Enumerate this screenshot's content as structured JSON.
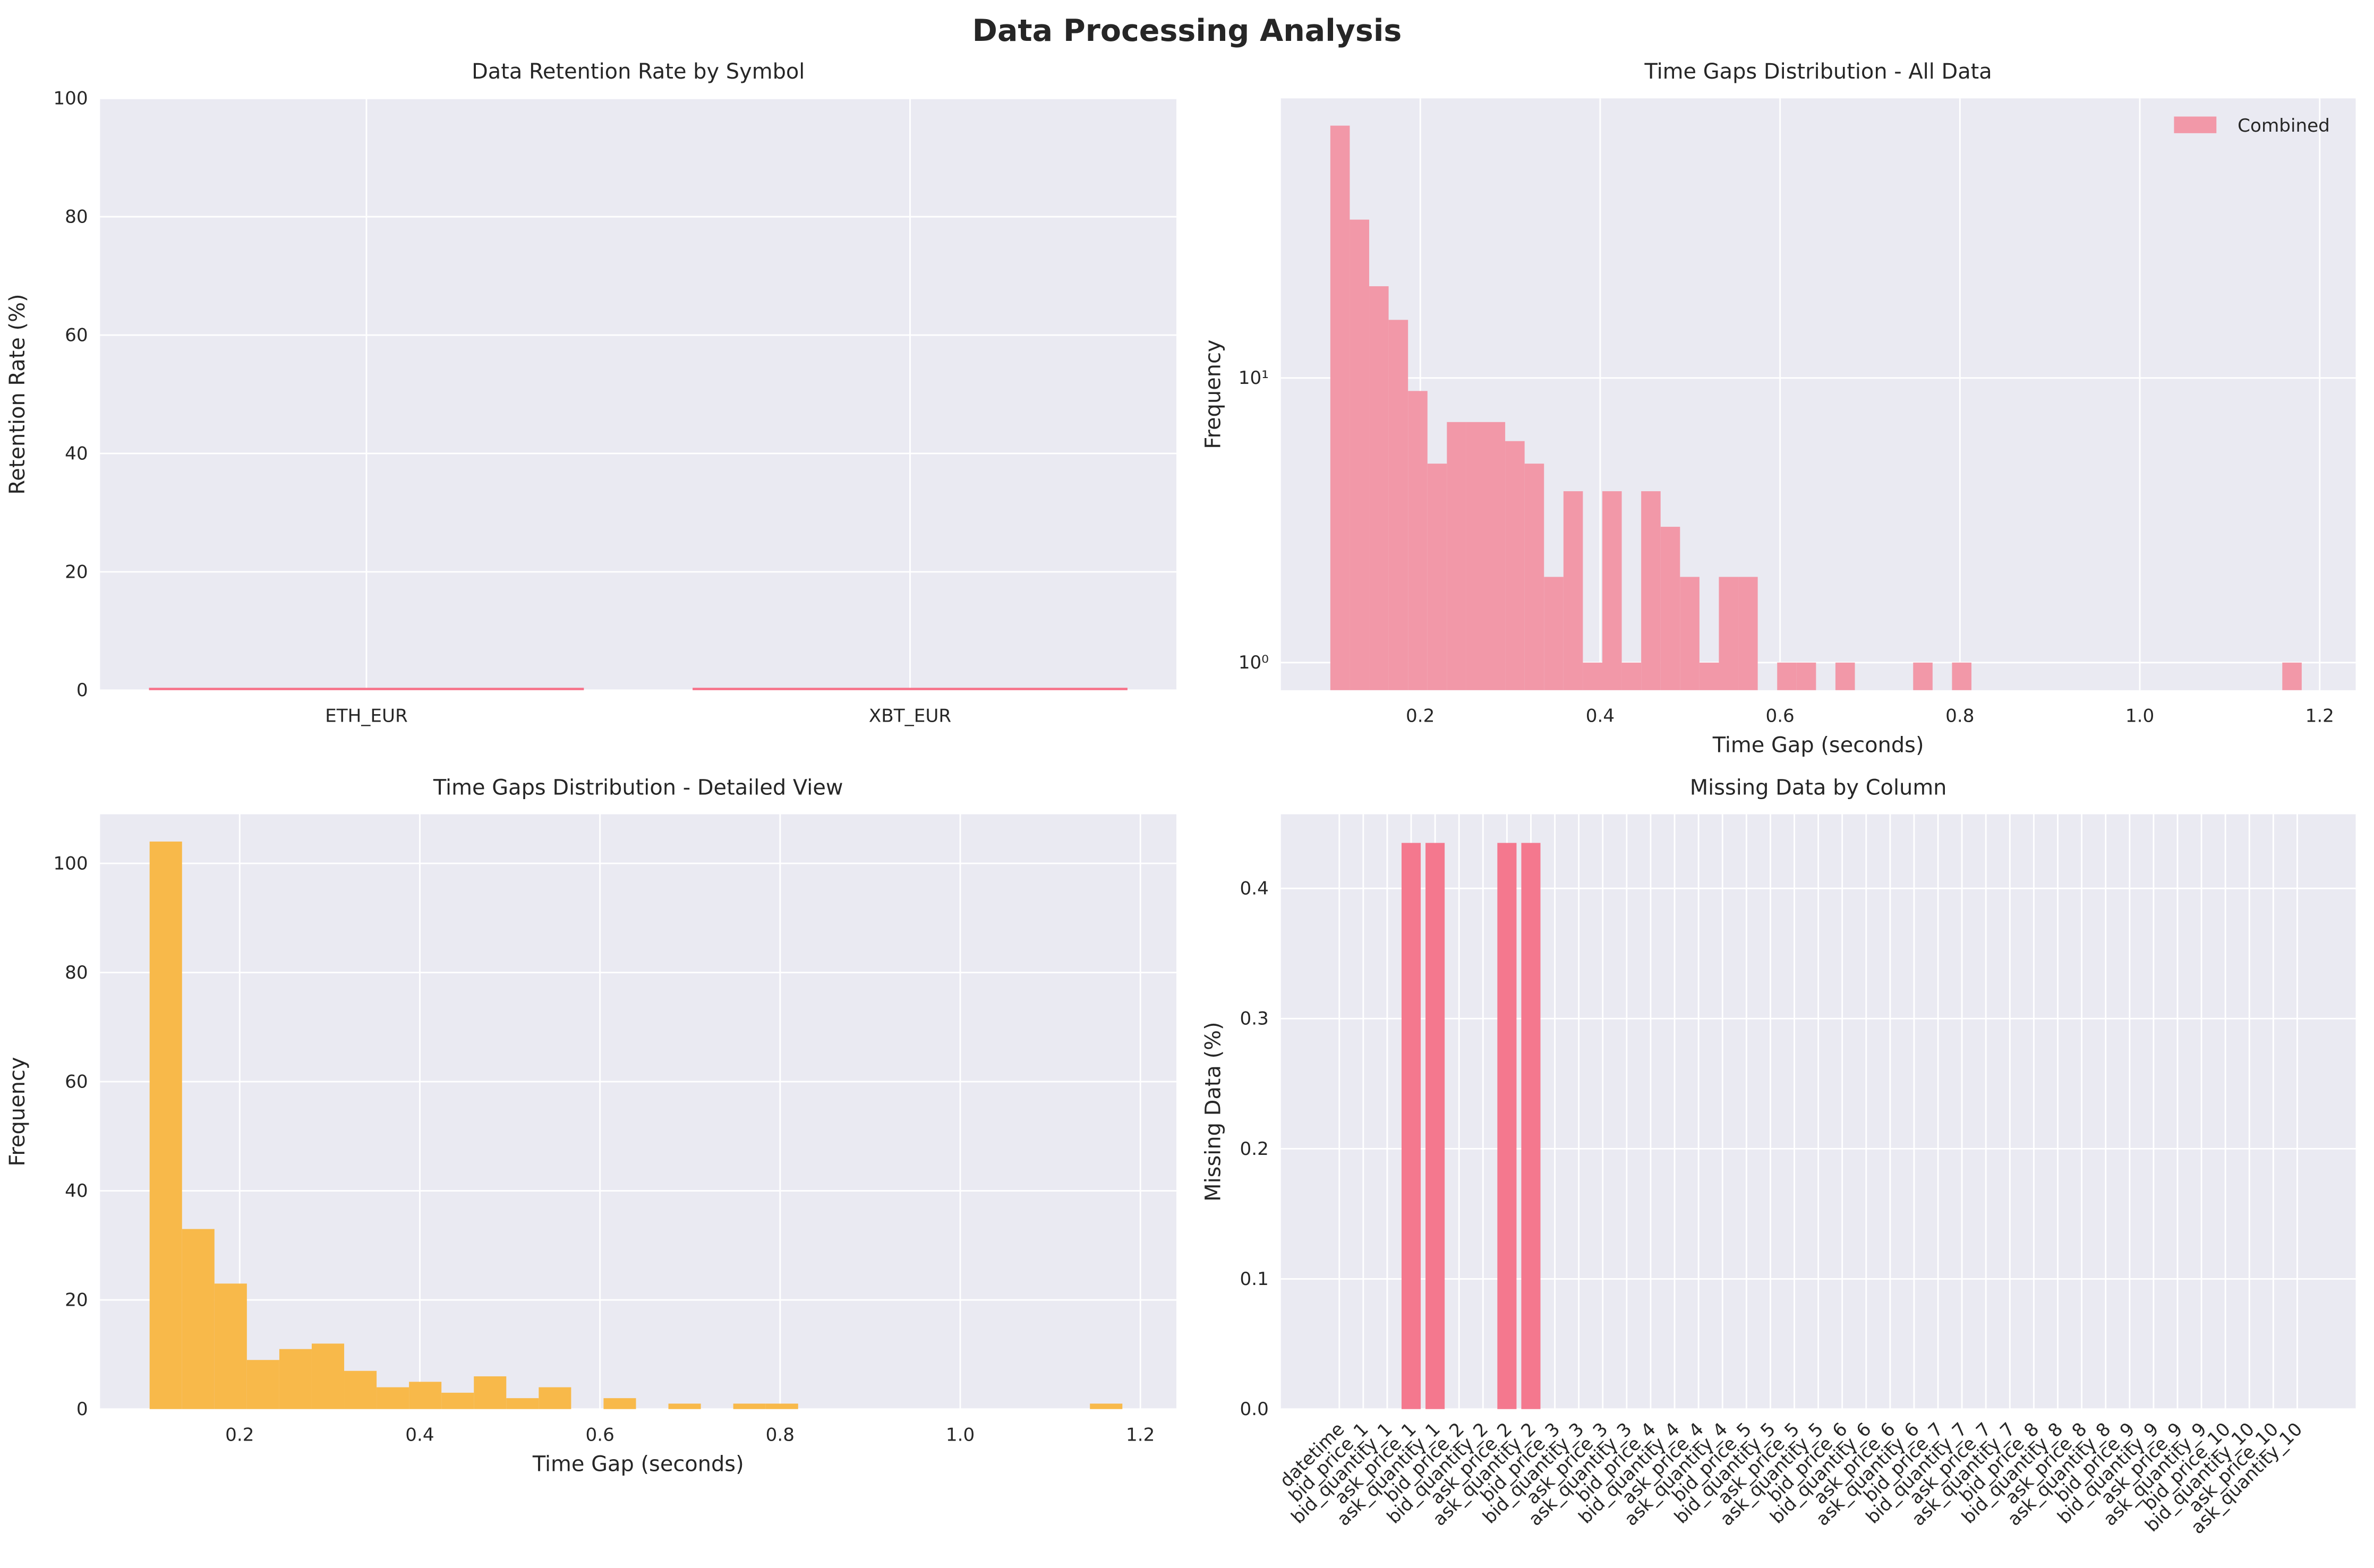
{
  "title": "Data Processing Analysis",
  "chart_data": [
    {
      "type": "bar",
      "title": "Data Retention Rate by Symbol",
      "ylabel": "Retention Rate (%)",
      "categories": [
        "ETH_EUR",
        "XBT_EUR"
      ],
      "values": [
        0.4,
        0.4
      ],
      "color": "#f77189",
      "ylim": [
        0,
        100
      ],
      "yticks": [
        0,
        20,
        40,
        60,
        80,
        100
      ],
      "grid": true
    },
    {
      "type": "histogram",
      "title": "Time Gaps Distribution - All Data",
      "xlabel": "Time Gap (seconds)",
      "ylabel": "Frequency",
      "bins": [
        0.1,
        0.1216,
        0.1432,
        0.1648,
        0.1864,
        0.208,
        0.2296,
        0.2512,
        0.2728,
        0.2944,
        0.316,
        0.3376,
        0.3592,
        0.3808,
        0.4024,
        0.424,
        0.4456,
        0.4672,
        0.4888,
        0.5104,
        0.532,
        0.5536,
        0.5752,
        0.5968,
        0.6184,
        0.64,
        0.6616,
        0.6832,
        0.7048,
        0.7264,
        0.748,
        0.7696,
        0.7912,
        0.8128,
        0.8344,
        0.856,
        0.8776,
        0.8992,
        0.9208,
        0.9424,
        0.964,
        0.9856,
        1.0072,
        1.0288,
        1.0504,
        1.072,
        1.0936,
        1.1152,
        1.1368,
        1.1584,
        1.18
      ],
      "series": [
        {
          "name": "Combined",
          "color": "#f298a8",
          "values": [
            77,
            36,
            21,
            16,
            9,
            5,
            7,
            7,
            7,
            6,
            5,
            2,
            4,
            1,
            4,
            1,
            4,
            3,
            2,
            1,
            2,
            2,
            0,
            1,
            1,
            0,
            1,
            0,
            0,
            0,
            1,
            0,
            1,
            0,
            0,
            0,
            0,
            0,
            0,
            0,
            0,
            0,
            0,
            0,
            0,
            0,
            0,
            0,
            0,
            1
          ]
        }
      ],
      "log_y": true,
      "ylim": [
        0.8,
        96
      ],
      "yticks": [
        {
          "value": 1,
          "label": "10⁰"
        },
        {
          "value": 10,
          "label": "10¹"
        }
      ],
      "xlim": [
        0.045,
        1.24
      ],
      "xticks": [
        0.2,
        0.4,
        0.6,
        0.8,
        {
          "value": 1,
          "label": "1.0"
        },
        1.2
      ],
      "legend": "upper right",
      "grid": true
    },
    {
      "type": "histogram",
      "title": "Time Gaps Distribution - Detailed View",
      "xlabel": "Time Gap (seconds)",
      "ylabel": "Frequency",
      "bins": [
        0.1,
        0.136,
        0.172,
        0.208,
        0.244,
        0.28,
        0.316,
        0.352,
        0.388,
        0.424,
        0.46,
        0.496,
        0.532,
        0.568,
        0.604,
        0.64,
        0.676,
        0.712,
        0.748,
        0.784,
        0.82,
        0.856,
        0.892,
        0.928,
        0.964,
        1.0,
        1.036,
        1.072,
        1.108,
        1.144,
        1.18
      ],
      "values": [
        104,
        33,
        23,
        9,
        11,
        12,
        7,
        4,
        5,
        3,
        6,
        2,
        4,
        0,
        2,
        0,
        1,
        0,
        1,
        1,
        0,
        0,
        0,
        0,
        0,
        0,
        0,
        0,
        0,
        1
      ],
      "color": "#f8b94a",
      "ylim": [
        0,
        109
      ],
      "yticks": [
        0,
        20,
        40,
        60,
        80,
        100
      ],
      "xlim": [
        0.045,
        1.24
      ],
      "xticks": [
        0.2,
        0.4,
        0.6,
        0.8,
        {
          "value": 1,
          "label": "1.0"
        },
        1.2
      ],
      "grid": true
    },
    {
      "type": "bar",
      "title": "Missing Data by Column",
      "ylabel": "Missing Data (%)",
      "categories": [
        "datetime",
        "bid_price_1",
        "bid_quantity_1",
        "ask_price_1",
        "ask_quantity_1",
        "bid_price_2",
        "bid_quantity_2",
        "ask_price_2",
        "ask_quantity_2",
        "bid_price_3",
        "bid_quantity_3",
        "ask_price_3",
        "ask_quantity_3",
        "bid_price_4",
        "bid_quantity_4",
        "ask_price_4",
        "ask_quantity_4",
        "bid_price_5",
        "bid_quantity_5",
        "ask_price_5",
        "ask_quantity_5",
        "bid_price_6",
        "bid_quantity_6",
        "ask_price_6",
        "ask_quantity_6",
        "bid_price_7",
        "bid_quantity_7",
        "ask_price_7",
        "ask_quantity_7",
        "bid_price_8",
        "bid_quantity_8",
        "ask_price_8",
        "ask_quantity_8",
        "bid_price_9",
        "bid_quantity_9",
        "ask_price_9",
        "ask_quantity_9",
        "bid_price_10",
        "bid_quantity_10",
        "ask_price_10",
        "ask_quantity_10"
      ],
      "values": [
        0,
        0,
        0,
        0.435,
        0.435,
        0,
        0,
        0.435,
        0.435,
        0,
        0,
        0,
        0,
        0,
        0,
        0,
        0,
        0,
        0,
        0,
        0,
        0,
        0,
        0,
        0,
        0,
        0,
        0,
        0,
        0,
        0,
        0,
        0,
        0,
        0,
        0,
        0,
        0,
        0,
        0,
        0
      ],
      "color": "#f4788e",
      "ylim": [
        0,
        0.457
      ],
      "yticks": [
        {
          "value": 0,
          "label": "0.0"
        },
        0.1,
        0.2,
        0.3,
        0.4
      ],
      "x_label_rotation": 45,
      "grid": true
    }
  ]
}
